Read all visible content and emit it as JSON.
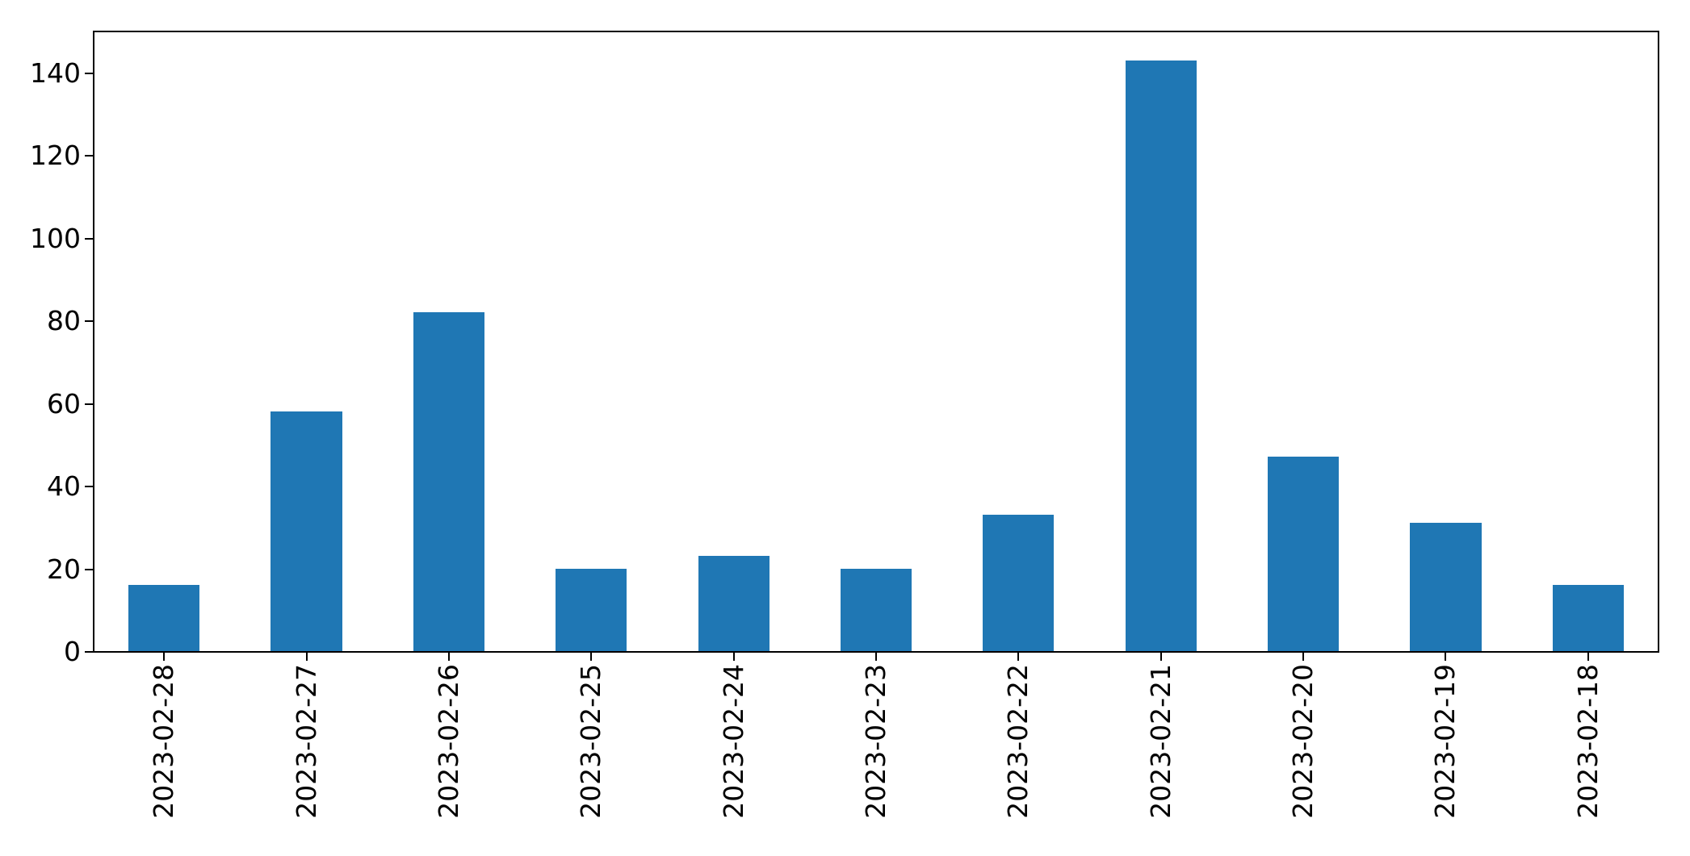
{
  "chart_data": {
    "type": "bar",
    "title": "",
    "xlabel": "",
    "ylabel": "",
    "categories": [
      "2023-02-28",
      "2023-02-27",
      "2023-02-26",
      "2023-02-25",
      "2023-02-24",
      "2023-02-23",
      "2023-02-22",
      "2023-02-21",
      "2023-02-20",
      "2023-02-19",
      "2023-02-18"
    ],
    "values": [
      16,
      58,
      82,
      20,
      23,
      20,
      33,
      143,
      47,
      31,
      16
    ],
    "y_ticks": [
      0,
      20,
      40,
      60,
      80,
      100,
      120,
      140
    ],
    "ylim": [
      0,
      150.15
    ],
    "bar_color": "#1f77b4",
    "axis_color": "#000000",
    "background_color": "#ffffff",
    "x_tick_label_rotation_deg": 90,
    "bar_width_fraction": 0.5,
    "grid": false,
    "legend": "none"
  }
}
